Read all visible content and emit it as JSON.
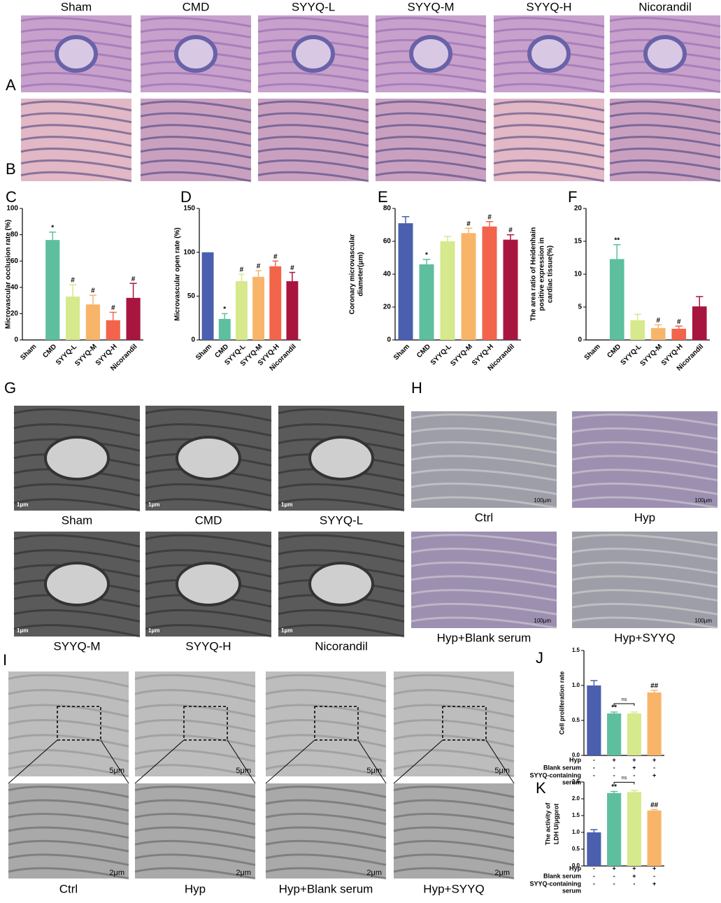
{
  "panels": {
    "A": {
      "label": "A",
      "captions": [
        "Sham",
        "CMD",
        "SYYQ-L",
        "SYYQ-M",
        "SYYQ-H",
        "Nicorandil"
      ]
    },
    "B": {
      "label": "B"
    },
    "G": {
      "label": "G",
      "captions": [
        "Sham",
        "CMD",
        "SYYQ-L",
        "SYYQ-M",
        "SYYQ-H",
        "Nicorandil"
      ],
      "scales": [
        "1μm",
        "1μm",
        "1μm",
        "1μm",
        "1μm",
        "1μm"
      ]
    },
    "H": {
      "label": "H",
      "captions": [
        "Ctrl",
        "Hyp",
        "Hyp+Blank serum",
        "Hyp+SYYQ"
      ],
      "scales": [
        "100μm",
        "100μm",
        "100μm",
        "100μm"
      ]
    },
    "I": {
      "label": "I",
      "captions": [
        "Ctrl",
        "Hyp",
        "Hyp+Blank serum",
        "Hyp+SYYQ"
      ],
      "scales_top": [
        "5μm",
        "5μm",
        "5μm",
        "5μm"
      ],
      "scales_bottom": [
        "2μm",
        "2μm",
        "2μm",
        "2μm"
      ]
    }
  },
  "chart_data": [
    {
      "type": "bar",
      "label": "C",
      "ylabel": [
        "Microvascular occlusion rate (%)"
      ],
      "categories": [
        "Sham",
        "CMD",
        "SYYQ-L",
        "SYYQ-M",
        "SYYQ-H",
        "Nicorandil"
      ],
      "values": [
        0,
        76,
        33,
        27,
        15,
        32
      ],
      "errors": [
        null,
        6,
        9,
        7,
        6,
        11
      ],
      "sig": [
        null,
        "*",
        "#",
        "#",
        "#",
        "#"
      ],
      "colors": [
        "#4a5fad",
        "#5dbf9e",
        "#d6e98c",
        "#f8b56a",
        "#f2654a",
        "#a8163f"
      ],
      "ylim": [
        0,
        100
      ],
      "yticks": [
        0,
        20,
        40,
        60,
        80,
        100
      ]
    },
    {
      "type": "bar",
      "label": "D",
      "ylabel": [
        "Microvascular open rate (%)"
      ],
      "categories": [
        "Sham",
        "CMD",
        "SYYQ-L",
        "SYYQ-M",
        "SYYQ-H",
        "Nicorandil"
      ],
      "values": [
        100,
        24,
        67,
        72,
        84,
        67
      ],
      "errors": [
        null,
        6,
        8,
        7,
        6,
        10
      ],
      "sig": [
        null,
        "*",
        "#",
        "#",
        "#",
        "#"
      ],
      "colors": [
        "#4a5fad",
        "#5dbf9e",
        "#d6e98c",
        "#f8b56a",
        "#f2654a",
        "#a8163f"
      ],
      "ylim": [
        0,
        150
      ],
      "yticks": [
        0,
        50,
        100,
        150
      ]
    },
    {
      "type": "bar",
      "label": "E",
      "ylabel": [
        "Coronary microvascular",
        "diameter(μm)"
      ],
      "categories": [
        "Sham",
        "CMD",
        "SYYQ-L",
        "SYYQ-M",
        "SYYQ-H",
        "Nicorandil"
      ],
      "values": [
        71,
        46,
        60,
        65,
        69,
        61
      ],
      "errors": [
        4,
        3,
        3,
        3,
        3,
        3
      ],
      "sig": [
        null,
        "*",
        null,
        "#",
        "#",
        "#"
      ],
      "colors": [
        "#4a5fad",
        "#5dbf9e",
        "#d6e98c",
        "#f8b56a",
        "#f2654a",
        "#a8163f"
      ],
      "ylim": [
        0,
        80
      ],
      "yticks": [
        0,
        20,
        40,
        60,
        80
      ]
    },
    {
      "type": "bar",
      "label": "F",
      "ylabel": [
        "The area ratio of Heidenhain",
        "positive expression in",
        "cardiac tissue(%)"
      ],
      "categories": [
        "Sham",
        "CMD",
        "SYYQ-L",
        "SYYQ-M",
        "SYYQ-H",
        "Nicorandil"
      ],
      "values": [
        0,
        12.3,
        3.0,
        1.8,
        1.7,
        5.1
      ],
      "errors": [
        null,
        2.2,
        0.9,
        0.5,
        0.4,
        1.5
      ],
      "sig": [
        null,
        "**",
        null,
        "#",
        "#",
        null
      ],
      "colors": [
        "#4a5fad",
        "#5dbf9e",
        "#d6e98c",
        "#f8b56a",
        "#f2654a",
        "#a8163f"
      ],
      "ylim": [
        0,
        20
      ],
      "yticks": [
        0,
        5,
        10,
        15,
        20
      ]
    },
    {
      "type": "bar",
      "label": "J",
      "ylabel": [
        "Cell proliferation rate"
      ],
      "categories": [
        null,
        null,
        null,
        null
      ],
      "values": [
        1.0,
        0.6,
        0.6,
        0.9
      ],
      "errors": [
        0.07,
        0.02,
        0.02,
        0.03
      ],
      "sig": [
        null,
        "**",
        null,
        "##"
      ],
      "annotation": "ns",
      "colors": [
        "#4a5fad",
        "#5dbf9e",
        "#d6e98c",
        "#f8b56a"
      ],
      "ylim": [
        0,
        1.5
      ],
      "yticks": [
        {
          "value": 0,
          "label": "0.0"
        },
        {
          "value": 0.5,
          "label": "0.5"
        },
        {
          "value": 1,
          "label": "1.0"
        },
        {
          "value": 1.5,
          "label": "1.5"
        }
      ],
      "conditions": [
        {
          "name": [
            "Hyp"
          ],
          "signs": [
            "-",
            "+",
            "+",
            "+"
          ]
        },
        {
          "name": [
            "Blank serum"
          ],
          "signs": [
            "-",
            "-",
            "+",
            "-"
          ]
        },
        {
          "name": [
            "SYYQ-containing",
            "serum"
          ],
          "signs": [
            "-",
            "-",
            "-",
            "+"
          ]
        }
      ]
    },
    {
      "type": "bar",
      "label": "K",
      "ylabel": [
        "The activity of",
        "LDH U/μgprot"
      ],
      "categories": [
        null,
        null,
        null,
        null
      ],
      "values": [
        1.0,
        2.17,
        2.2,
        1.65
      ],
      "errors": [
        0.08,
        0.05,
        0.05,
        0.03
      ],
      "sig": [
        null,
        "**",
        null,
        "##"
      ],
      "annotation": "ns",
      "colors": [
        "#4a5fad",
        "#5dbf9e",
        "#d6e98c",
        "#f8b56a"
      ],
      "ylim": [
        0,
        2.5
      ],
      "yticks": [
        {
          "value": 0,
          "label": "0.0"
        },
        {
          "value": 0.5,
          "label": "0.5"
        },
        {
          "value": 1,
          "label": "1.0"
        },
        {
          "value": 1.5,
          "label": "1.5"
        },
        {
          "value": 2,
          "label": "2.0"
        },
        {
          "value": 2.5,
          "label": "2.5"
        }
      ],
      "conditions": [
        {
          "name": [
            "Hyp"
          ],
          "signs": [
            "-",
            "+",
            "+",
            "+"
          ]
        },
        {
          "name": [
            "Blank serum"
          ],
          "signs": [
            "-",
            "-",
            "+",
            "-"
          ]
        },
        {
          "name": [
            "SYYQ-containing",
            "serum"
          ],
          "signs": [
            "-",
            "-",
            "-",
            "+"
          ]
        }
      ]
    }
  ]
}
